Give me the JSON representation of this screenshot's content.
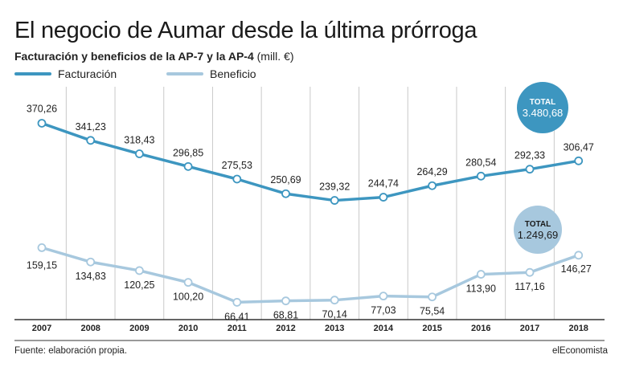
{
  "header": {
    "title": "El negocio de Aumar desde la última prórroga",
    "subtitle_main": "Facturación y beneficios de la AP-7 y la AP-4",
    "subtitle_unit": "(mill. €)"
  },
  "footer": {
    "source": "Fuente: elaboración propia.",
    "brand": "elEconomista"
  },
  "colors": {
    "facturacion": "#3d96c0",
    "beneficio": "#a7c8de",
    "grid": "#c9c9c9",
    "axis": "#333333"
  },
  "chart_data": {
    "type": "line",
    "categories": [
      "2007",
      "2008",
      "2009",
      "2010",
      "2011",
      "2012",
      "2013",
      "2014",
      "2015",
      "2016",
      "2017",
      "2018"
    ],
    "series": [
      {
        "name": "Facturación",
        "values": [
          370.26,
          341.23,
          318.43,
          296.85,
          275.53,
          250.69,
          239.32,
          244.74,
          264.29,
          280.54,
          292.33,
          306.47
        ],
        "labels": [
          "370,26",
          "341,23",
          "318,43",
          "296,85",
          "275,53",
          "250,69",
          "239,32",
          "244,74",
          "264,29",
          "280,54",
          "292,33",
          "306,47"
        ],
        "total_label": "TOTAL",
        "total_value": "3.480,68"
      },
      {
        "name": "Beneficio",
        "values": [
          159.15,
          134.83,
          120.25,
          100.2,
          66.41,
          68.81,
          70.14,
          77.03,
          75.54,
          113.9,
          117.16,
          146.27
        ],
        "labels": [
          "159,15",
          "134,83",
          "120,25",
          "100,20",
          "66,41",
          "68,81",
          "70,14",
          "77,03",
          "75,54",
          "113,90",
          "117,16",
          "146,27"
        ],
        "total_label": "TOTAL",
        "total_value": "1.249,69"
      }
    ],
    "grid": "vertical",
    "legend_position": "top-left"
  }
}
